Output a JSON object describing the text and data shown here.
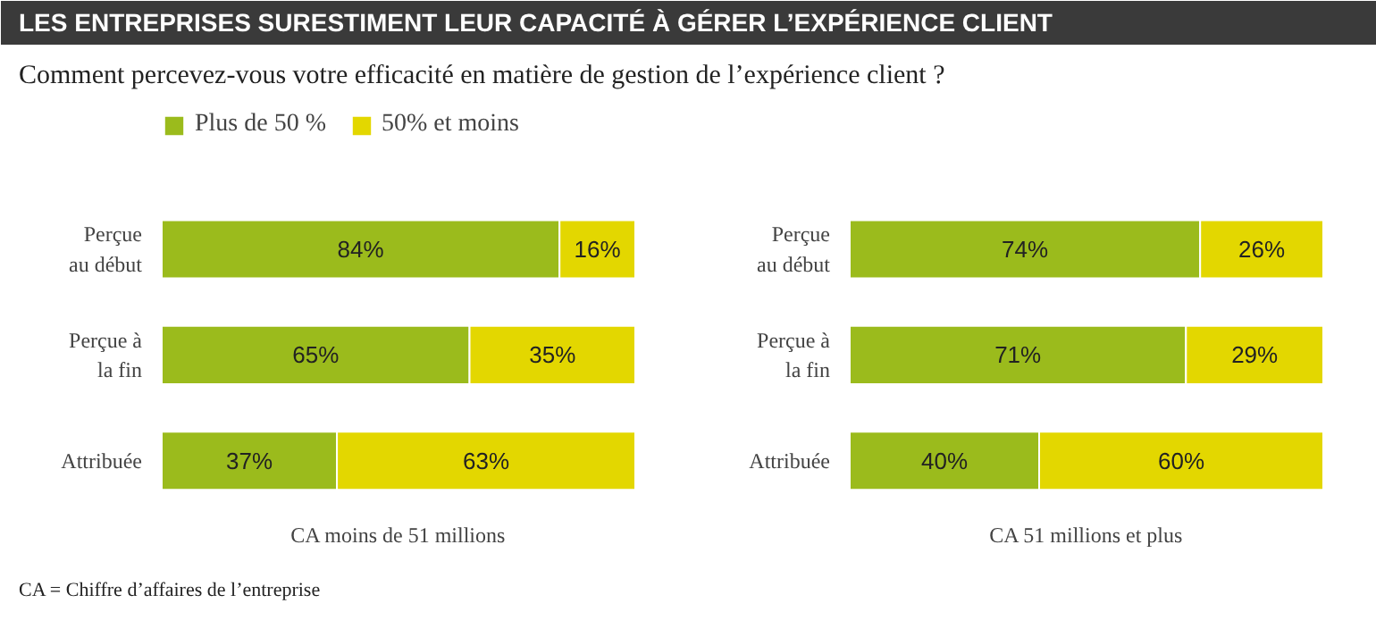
{
  "chart_data": [
    {
      "type": "bar",
      "orientation": "horizontal",
      "stacked": true,
      "legend": "top left",
      "title": "LES ENTREPRISES SURESTIMENT LEUR CAPACITÉ À GÉRER L’EXPÉRIENCE CLIENT",
      "subtitle": "Comment percevez-vous votre efficacité en matière de gestion de l’expérience client ?",
      "xlabel": "CA moins de 51 millions",
      "annotations": [
        "CA = Chiffre d’affaires de l’entreprise"
      ],
      "categories": [
        "Perçue\nau début",
        "Perçue à\nla fin",
        "Attribuée"
      ],
      "series": [
        {
          "name": "Plus de 50 %",
          "color": "#9bbb1c",
          "values": [
            84,
            65,
            37
          ],
          "value_labels": [
            "84%",
            "65%",
            "37%"
          ]
        },
        {
          "name": "50% et moins",
          "color": "#e3d700",
          "values": [
            16,
            35,
            63
          ],
          "value_labels": [
            "16%",
            "35%",
            "63%"
          ]
        }
      ]
    },
    {
      "type": "bar",
      "orientation": "horizontal",
      "stacked": true,
      "xlabel": "CA 51 millions et plus",
      "categories": [
        "Perçue\nau début",
        "Perçue à\nla fin",
        "Attribuée"
      ],
      "series": [
        {
          "color": "#9bbb1c",
          "values": [
            74,
            71,
            40
          ],
          "value_labels": [
            "74%",
            "71%",
            "40%"
          ]
        },
        {
          "color": "#e3d700",
          "values": [
            26,
            29,
            60
          ],
          "value_labels": [
            "26%",
            "29%",
            "60%"
          ]
        }
      ]
    }
  ]
}
